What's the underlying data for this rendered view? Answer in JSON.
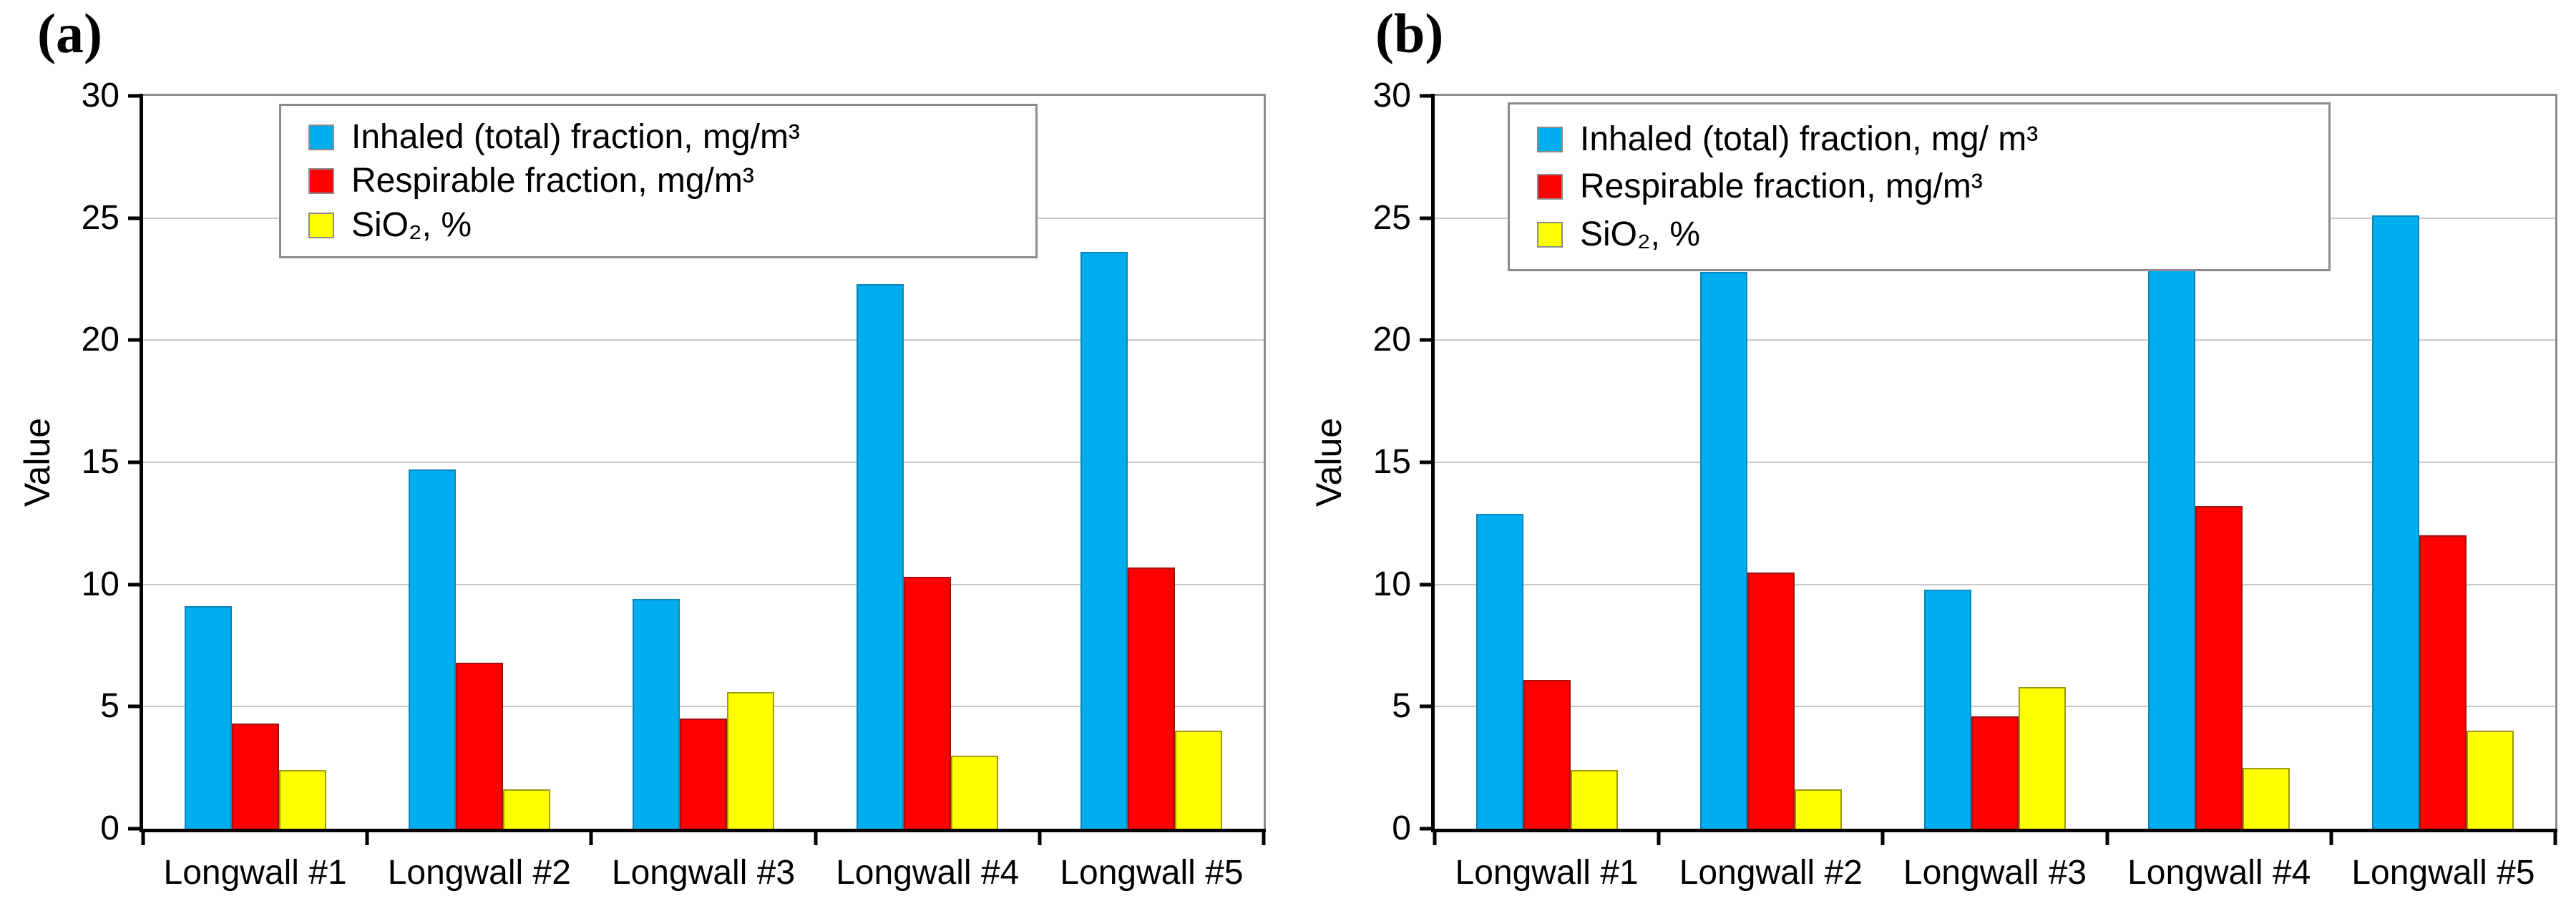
{
  "chart_data": [
    {
      "type": "bar",
      "panel_label": "(a)",
      "title": "",
      "xlabel": "",
      "ylabel": "Value",
      "ylim": [
        0,
        30
      ],
      "y_ticks": [
        0,
        5,
        10,
        15,
        20,
        25,
        30
      ],
      "grid": true,
      "legend_position": "top-left inside plot",
      "categories": [
        "Longwall #1",
        "Longwall #2",
        "Longwall #3",
        "Longwall #4",
        "Longwall #5"
      ],
      "series": [
        {
          "name": "Inhaled (total) fraction, mg/m³",
          "color": "#00AEEF",
          "values": [
            9.1,
            14.7,
            9.4,
            22.3,
            23.6
          ]
        },
        {
          "name": "Respirable fraction, mg/m³",
          "color": "#FF0000",
          "values": [
            4.3,
            6.8,
            4.5,
            10.3,
            10.7
          ]
        },
        {
          "name": "SiO₂, %",
          "color": "#FFFF00",
          "values": [
            2.4,
            1.6,
            5.6,
            3.0,
            4.0
          ]
        }
      ]
    },
    {
      "type": "bar",
      "panel_label": "(b)",
      "title": "",
      "xlabel": "",
      "ylabel": "Value",
      "ylim": [
        0,
        30
      ],
      "y_ticks": [
        0,
        5,
        10,
        15,
        20,
        25,
        30
      ],
      "grid": true,
      "legend_position": "top-left inside plot",
      "categories": [
        "Longwall #1",
        "Longwall #2",
        "Longwall #3",
        "Longwall #4",
        "Longwall #5"
      ],
      "series": [
        {
          "name": "Inhaled (total) fraction, mg/ m³",
          "color": "#00AEEF",
          "values": [
            12.9,
            22.8,
            9.8,
            29.0,
            25.1
          ]
        },
        {
          "name": "Respirable fraction, mg/m³",
          "color": "#FF0000",
          "values": [
            6.1,
            10.5,
            4.6,
            13.2,
            12.0
          ]
        },
        {
          "name": "SiO₂, %",
          "color": "#FFFF00",
          "values": [
            2.4,
            1.6,
            5.8,
            2.5,
            4.0
          ]
        }
      ]
    }
  ]
}
